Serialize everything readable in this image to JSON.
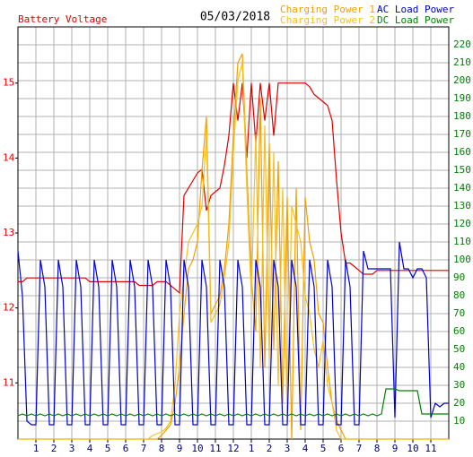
{
  "chart_data": {
    "type": "line",
    "title": "05/03/2018",
    "ylabel": "Battery Voltage",
    "grid": true,
    "x": [
      0,
      0.25,
      0.5,
      0.75,
      1,
      1.25,
      1.5,
      1.75,
      2,
      2.25,
      2.5,
      2.75,
      3,
      3.25,
      3.5,
      3.75,
      4,
      4.25,
      4.5,
      4.75,
      5,
      5.25,
      5.5,
      5.75,
      6,
      6.25,
      6.5,
      6.75,
      7,
      7.25,
      7.5,
      7.75,
      8,
      8.25,
      8.5,
      8.75,
      9,
      9.25,
      9.5,
      9.75,
      10,
      10.25,
      10.5,
      10.75,
      11,
      11.25,
      11.5,
      11.75,
      12,
      12.25,
      12.5,
      12.75,
      13,
      13.25,
      13.5,
      13.75,
      14,
      14.25,
      14.5,
      14.75,
      15,
      15.25,
      15.5,
      15.75,
      16,
      16.25,
      16.5,
      16.75,
      17,
      17.25,
      17.5,
      17.75,
      18,
      18.25,
      18.5,
      18.75,
      19,
      19.25,
      19.5,
      19.75,
      20,
      20.25,
      20.5,
      20.75,
      21,
      21.25,
      21.5,
      21.75,
      22,
      22.25,
      22.5,
      22.75,
      23,
      23.25,
      23.5,
      23.75,
      24
    ],
    "xlim": [
      0,
      24
    ],
    "xticks": [
      1,
      2,
      3,
      4,
      5,
      6,
      7,
      8,
      9,
      10,
      11,
      12,
      {
        "value": 13,
        "label": "1"
      },
      {
        "value": 14,
        "label": "2"
      },
      {
        "value": 15,
        "label": "3"
      },
      {
        "value": 16,
        "label": "4"
      },
      {
        "value": 17,
        "label": "5"
      },
      {
        "value": 18,
        "label": "6"
      },
      {
        "value": 19,
        "label": "7"
      },
      {
        "value": 20,
        "label": "8"
      },
      {
        "value": 21,
        "label": "9"
      },
      {
        "value": 22,
        "label": "10"
      },
      {
        "value": 23,
        "label": "11"
      }
    ],
    "ylim": [
      10.25,
      15.75
    ],
    "yticks": [
      11,
      12,
      13,
      14,
      15
    ],
    "y2lim": [
      0,
      230
    ],
    "y2ticks": [
      10,
      20,
      30,
      40,
      50,
      60,
      70,
      80,
      90,
      100,
      110,
      120,
      130,
      140,
      150,
      160,
      170,
      180,
      190,
      200,
      210,
      220
    ],
    "series": [
      {
        "name": "Battery Voltage",
        "color": "#dd0000",
        "values": [
          12.35,
          12.35,
          12.4,
          12.4,
          12.4,
          12.4,
          12.4,
          12.4,
          12.4,
          12.4,
          12.4,
          12.4,
          12.4,
          12.4,
          12.4,
          12.4,
          12.35,
          12.35,
          12.35,
          12.35,
          12.35,
          12.35,
          12.35,
          12.35,
          12.35,
          12.35,
          12.35,
          12.3,
          12.3,
          12.3,
          12.3,
          12.35,
          12.35,
          12.35,
          12.3,
          12.25,
          12.2,
          13.5,
          13.6,
          13.7,
          13.8,
          13.85,
          13.3,
          13.5,
          13.55,
          13.6,
          13.9,
          14.3,
          15.0,
          14.5,
          15.0,
          14.0,
          15.0,
          14.2,
          15.0,
          14.5,
          15.0,
          14.3,
          15.0,
          15.0,
          15.0,
          15.0,
          15.0,
          15.0,
          15.0,
          14.95,
          14.85,
          14.8,
          14.75,
          14.7,
          14.5,
          13.7,
          13.0,
          12.6,
          12.6,
          12.55,
          12.5,
          12.45,
          12.45,
          12.45,
          12.5,
          12.5,
          12.5,
          12.5,
          12.5,
          12.5,
          12.5,
          12.5,
          12.5,
          12.5,
          12.5,
          12.5,
          12.5,
          12.5,
          12.5,
          12.5,
          12.5
        ]
      },
      {
        "name": "Charging Power 1",
        "color": "#f0a000",
        "axis": "y2",
        "values": [
          0,
          0,
          0,
          0,
          0,
          0,
          0,
          0,
          0,
          0,
          0,
          0,
          0,
          0,
          0,
          0,
          0,
          0,
          0,
          0,
          0,
          0,
          0,
          0,
          0,
          0,
          0,
          0,
          0,
          0,
          0,
          0,
          2,
          5,
          8,
          20,
          40,
          70,
          95,
          100,
          110,
          150,
          180,
          70,
          75,
          80,
          95,
          120,
          170,
          210,
          215,
          150,
          90,
          60,
          190,
          40,
          165,
          50,
          155,
          20,
          135,
          0,
          140,
          5,
          135,
          110,
          100,
          70,
          65,
          40,
          20,
          10,
          5,
          0,
          0,
          0,
          0,
          0,
          0,
          0,
          0,
          0,
          0,
          0,
          0,
          0,
          0,
          0,
          0,
          0,
          0,
          0,
          0,
          0,
          0,
          0,
          0
        ]
      },
      {
        "name": "Charging Power 2",
        "color": "#f5c020",
        "axis": "y2",
        "values": [
          0,
          0,
          0,
          0,
          0,
          0,
          0,
          0,
          0,
          0,
          0,
          0,
          0,
          0,
          0,
          0,
          0,
          0,
          0,
          0,
          0,
          0,
          0,
          0,
          0,
          0,
          0,
          0,
          0,
          0,
          2,
          3,
          4,
          6,
          10,
          30,
          70,
          90,
          110,
          115,
          120,
          130,
          170,
          65,
          70,
          75,
          90,
          110,
          160,
          200,
          210,
          140,
          80,
          170,
          40,
          175,
          45,
          160,
          30,
          140,
          10,
          130,
          120,
          110,
          80,
          70,
          50,
          40,
          55,
          30,
          20,
          5,
          0,
          0,
          0,
          0,
          0,
          0,
          0,
          0,
          0,
          0,
          0,
          0,
          0,
          0,
          0,
          0,
          0,
          0,
          0,
          0,
          0,
          0,
          0,
          0,
          0
        ]
      },
      {
        "name": "AC Load Power",
        "color": "#0000cc",
        "axis": "y2",
        "values": [
          105,
          80,
          10,
          8,
          8,
          100,
          85,
          8,
          8,
          100,
          85,
          8,
          8,
          100,
          85,
          8,
          8,
          100,
          85,
          8,
          8,
          100,
          85,
          8,
          8,
          100,
          85,
          8,
          8,
          100,
          85,
          8,
          8,
          100,
          85,
          8,
          8,
          100,
          85,
          8,
          8,
          100,
          85,
          8,
          8,
          100,
          85,
          8,
          8,
          100,
          85,
          8,
          8,
          100,
          85,
          8,
          8,
          100,
          85,
          8,
          8,
          100,
          85,
          8,
          8,
          100,
          85,
          8,
          8,
          100,
          85,
          8,
          8,
          100,
          85,
          8,
          8,
          105,
          95,
          95,
          95,
          95,
          95,
          95,
          12,
          110,
          95,
          95,
          90,
          95,
          95,
          90,
          12,
          20,
          18,
          20,
          20
        ]
      },
      {
        "name": "DC Load Power",
        "color": "#008000",
        "axis": "y2",
        "values": [
          13,
          14,
          13,
          14,
          13,
          14,
          13,
          14,
          13,
          14,
          13,
          14,
          13,
          14,
          13,
          14,
          13,
          14,
          13,
          14,
          13,
          14,
          13,
          14,
          13,
          14,
          13,
          14,
          13,
          14,
          13,
          14,
          13,
          14,
          13,
          14,
          13,
          14,
          13,
          14,
          13,
          14,
          13,
          14,
          13,
          14,
          13,
          14,
          13,
          14,
          13,
          14,
          13,
          14,
          13,
          14,
          13,
          14,
          13,
          14,
          13,
          14,
          13,
          14,
          13,
          14,
          13,
          14,
          13,
          14,
          13,
          14,
          13,
          14,
          13,
          14,
          13,
          14,
          13,
          14,
          13,
          14,
          28,
          28,
          28,
          27,
          27,
          27,
          27,
          27,
          14,
          14,
          14,
          14,
          14,
          14,
          14
        ]
      }
    ]
  }
}
